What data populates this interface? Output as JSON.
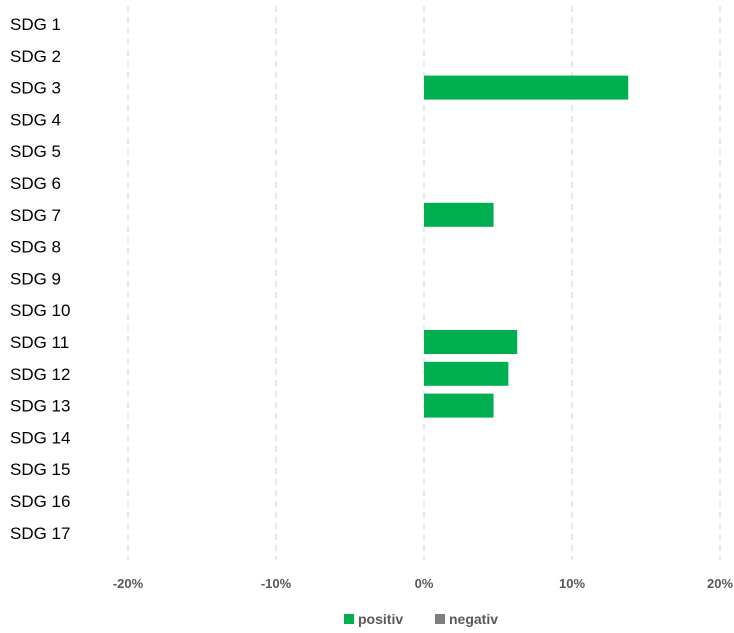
{
  "chart_data": {
    "type": "bar",
    "orientation": "horizontal",
    "categories": [
      "SDG 1",
      "SDG 2",
      "SDG 3",
      "SDG 4",
      "SDG 5",
      "SDG 6",
      "SDG 7",
      "SDG 8",
      "SDG 9",
      "SDG 10",
      "SDG 11",
      "SDG 12",
      "SDG 13",
      "SDG 14",
      "SDG 15",
      "SDG 16",
      "SDG 17"
    ],
    "series": [
      {
        "name": "positiv",
        "color": "#00b050",
        "values": [
          0,
          0,
          13.8,
          0,
          0,
          0,
          4.7,
          0,
          0,
          0,
          6.3,
          5.7,
          4.7,
          0,
          0,
          0,
          0
        ]
      },
      {
        "name": "negativ",
        "color": "#7f7f7f",
        "values": [
          0,
          0,
          0,
          0,
          0,
          0,
          0,
          0,
          0,
          0,
          0,
          0,
          0,
          0,
          0,
          0,
          0
        ]
      }
    ],
    "x_ticks": [
      -20,
      -10,
      0,
      10,
      20
    ],
    "x_tick_labels": [
      "-20%",
      "-10%",
      "0%",
      "10%",
      "20%"
    ],
    "xlim": [
      -20,
      20
    ],
    "grid": "vertical dashed",
    "legend_position": "bottom"
  }
}
